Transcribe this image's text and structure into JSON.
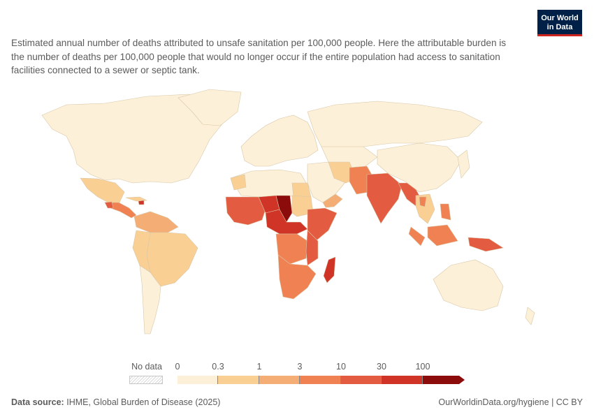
{
  "logo": {
    "line1": "Our World",
    "line2": "in Data"
  },
  "subtitle": "Estimated annual number of deaths attributed to unsafe sanitation per 100,000 people. Here the attributable burden is the number of deaths per 100,000 people that would no longer occur if the entire population had access to sanitation facilities connected to a sewer or septic tank.",
  "legend": {
    "no_data_label": "No data",
    "ticks": [
      "0",
      "0.3",
      "1",
      "3",
      "10",
      "30",
      "100"
    ],
    "colors": [
      "#fdf0d8",
      "#f9cf94",
      "#f5ad76",
      "#ef8153",
      "#e35b40",
      "#cf3427",
      "#8c0b0b"
    ]
  },
  "footer": {
    "source_label": "Data source:",
    "source_text": "IHME, Global Burden of Disease (2025)",
    "link_text": "OurWorldinData.org/hygiene | CC BY"
  }
}
